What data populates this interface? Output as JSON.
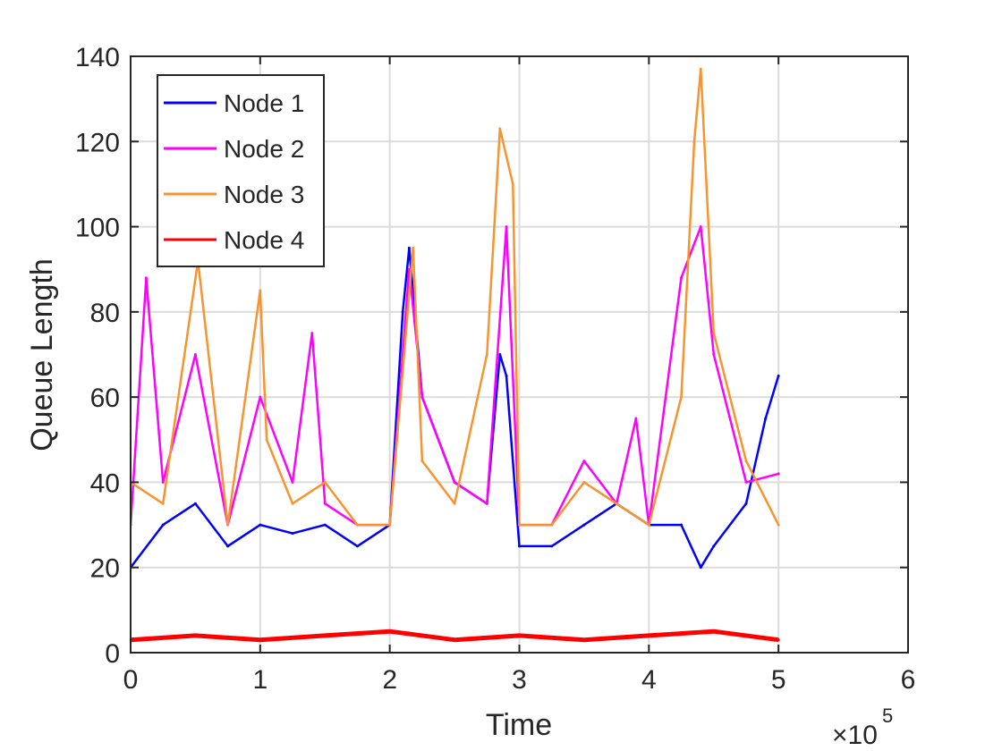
{
  "chart_data": {
    "type": "line",
    "title": "",
    "xlabel": "Time",
    "ylabel": "Queue Length",
    "x_exponent_label": "×10",
    "x_exponent_power": "5",
    "xlim": [
      0,
      6
    ],
    "ylim": [
      0,
      140
    ],
    "x_ticks": [
      "0",
      "1",
      "2",
      "3",
      "4",
      "5",
      "6"
    ],
    "y_ticks": [
      "0",
      "20",
      "40",
      "60",
      "80",
      "100",
      "120",
      "140"
    ],
    "grid": true,
    "legend_position": "top-left",
    "x_unit_note": "x values in units of 1e5",
    "series": [
      {
        "name": "Node 1",
        "color": "#0000ff",
        "x": [
          0,
          0.25,
          0.5,
          0.75,
          1.0,
          1.25,
          1.5,
          1.75,
          2.0,
          2.1,
          2.15,
          2.25,
          2.5,
          2.75,
          2.85,
          2.9,
          3.0,
          3.25,
          3.5,
          3.75,
          4.0,
          4.25,
          4.4,
          4.5,
          4.75,
          4.9,
          5.0
        ],
        "values": [
          20,
          30,
          35,
          25,
          30,
          28,
          30,
          25,
          30,
          80,
          95,
          60,
          40,
          35,
          70,
          65,
          25,
          25,
          30,
          35,
          30,
          30,
          20,
          25,
          35,
          55,
          65
        ]
      },
      {
        "name": "Node 2",
        "color": "#ff00ff",
        "x": [
          0,
          0.12,
          0.25,
          0.5,
          0.75,
          1.0,
          1.25,
          1.4,
          1.5,
          1.75,
          2.0,
          2.15,
          2.25,
          2.5,
          2.75,
          2.9,
          3.0,
          3.25,
          3.5,
          3.75,
          3.9,
          4.0,
          4.25,
          4.4,
          4.5,
          4.75,
          5.0
        ],
        "values": [
          30,
          88,
          40,
          70,
          30,
          60,
          40,
          75,
          35,
          30,
          30,
          90,
          60,
          40,
          35,
          100,
          30,
          30,
          45,
          35,
          55,
          30,
          88,
          100,
          70,
          40,
          42
        ]
      },
      {
        "name": "Node 3",
        "color": "#f7942f",
        "x": [
          0,
          0.25,
          0.52,
          0.75,
          1.0,
          1.05,
          1.25,
          1.5,
          1.75,
          2.0,
          2.18,
          2.25,
          2.5,
          2.75,
          2.85,
          2.95,
          3.0,
          3.25,
          3.5,
          3.75,
          4.0,
          4.25,
          4.35,
          4.4,
          4.5,
          4.75,
          5.0
        ],
        "values": [
          40,
          35,
          92,
          30,
          85,
          50,
          35,
          40,
          30,
          30,
          95,
          45,
          35,
          70,
          123,
          110,
          30,
          30,
          40,
          35,
          30,
          60,
          120,
          137,
          75,
          45,
          30
        ]
      },
      {
        "name": "Node 4",
        "color": "#ff0000",
        "x": [
          0,
          0.5,
          1.0,
          1.5,
          2.0,
          2.5,
          3.0,
          3.5,
          4.0,
          4.5,
          5.0
        ],
        "values": [
          3,
          4,
          3,
          4,
          5,
          3,
          4,
          3,
          4,
          5,
          3
        ]
      }
    ]
  }
}
